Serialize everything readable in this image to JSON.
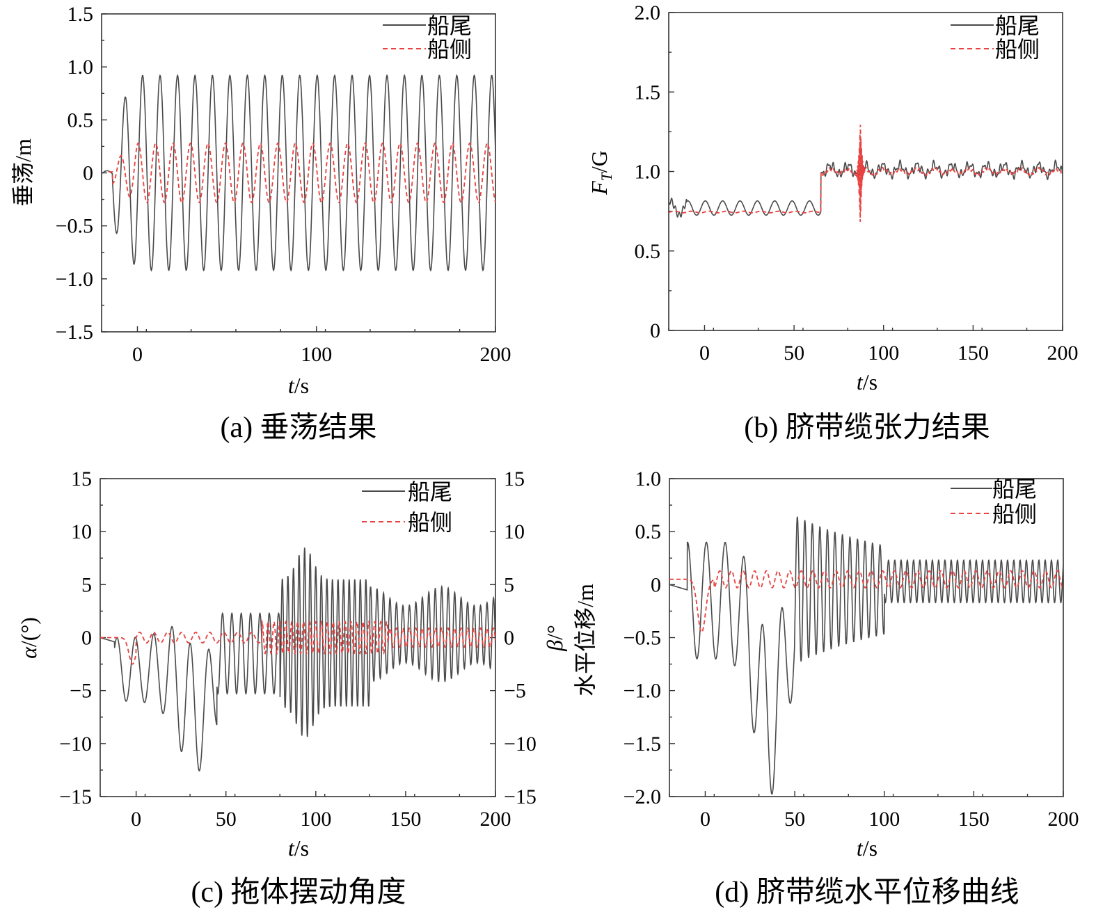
{
  "legend": {
    "stern": "船尾",
    "side": "船侧"
  },
  "colors": {
    "stern": "#4a4a4a",
    "side": "#e8413f"
  },
  "chart_data": [
    {
      "id": "a",
      "type": "line",
      "caption": "(a) 垂荡结果",
      "ylabel": "垂荡/m",
      "xlabel_italic": "t",
      "xlabel_rest": "/s",
      "xlim": [
        -20,
        200
      ],
      "ylim": [
        -1.5,
        1.5
      ],
      "xticks": [
        0,
        100,
        200
      ],
      "xtick_labels": [
        "0",
        "100",
        "200"
      ],
      "yticks": [
        -1.5,
        -1.0,
        -0.5,
        0,
        0.5,
        1.0,
        1.5
      ],
      "ytick_labels": [
        "−1.5",
        "−1.0",
        "−0.5",
        "0",
        "0.5",
        "1.0",
        "1.5"
      ],
      "grid": false,
      "legend_position": "top-right",
      "series": [
        {
          "name": "船尾",
          "style": "solid",
          "description": "sinusoid, amplitude ~0.92 m, period ~9.7 s, small transient start near t=-15"
        },
        {
          "name": "船侧",
          "style": "dashed",
          "description": "sinusoid, amplitude ~0.28 m, same period"
        }
      ]
    },
    {
      "id": "b",
      "type": "line",
      "caption": "(b) 脐带缆张力结果",
      "ylabel_italic_main": "F",
      "ylabel_italic_sub": "T",
      "ylabel_rest": "/G",
      "xlabel_italic": "t",
      "xlabel_rest": "/s",
      "xlim": [
        -20,
        200
      ],
      "ylim": [
        0,
        2.0
      ],
      "xticks": [
        0,
        50,
        100,
        150,
        200
      ],
      "xtick_labels": [
        "0",
        "50",
        "100",
        "150",
        "200"
      ],
      "yticks": [
        0,
        0.5,
        1.0,
        1.5,
        2.0
      ],
      "ytick_labels": [
        "0",
        "0.5",
        "1.0",
        "1.5",
        "2.0"
      ],
      "grid": false,
      "legend_position": "top-right",
      "series": [
        {
          "name": "船尾",
          "style": "solid",
          "description": "~0.76 with 0.05 oscillation until t=65, then ~1.0 with noisy oscillation"
        },
        {
          "name": "船侧",
          "style": "dashed",
          "description": "~0.74 until t=65, then ~1.0; spike to 1.44 / 0.45 near t=87"
        }
      ]
    },
    {
      "id": "c",
      "type": "line",
      "caption": "(c) 拖体摆动角度",
      "ylabel_italic": "α",
      "ylabel_rest": "/(°)",
      "y2label_italic": "β",
      "y2label_rest": "/°",
      "xlabel_italic": "t",
      "xlabel_rest": "/s",
      "xlim": [
        -20,
        200
      ],
      "ylim": [
        -15,
        15
      ],
      "xticks": [
        0,
        50,
        100,
        150,
        200
      ],
      "xtick_labels": [
        "0",
        "50",
        "100",
        "150",
        "200"
      ],
      "yticks": [
        -15,
        -10,
        -5,
        0,
        5,
        10,
        15
      ],
      "ytick_labels": [
        "−15",
        "−10",
        "−5",
        "0",
        "5",
        "10",
        "15"
      ],
      "grid": false,
      "legend_position": "top-right",
      "series": [
        {
          "name": "船尾",
          "style": "solid",
          "description": "oscillation, min ~-10.4 near t=30, max ~11.3 near t=94"
        },
        {
          "name": "船侧",
          "style": "dashed",
          "description": "small oscillation within about ±2"
        }
      ]
    },
    {
      "id": "d",
      "type": "line",
      "caption": "(d) 脐带缆水平位移曲线",
      "ylabel": "水平位移/m",
      "xlabel_italic": "t",
      "xlabel_rest": "/s",
      "xlim": [
        -20,
        200
      ],
      "ylim": [
        -2.0,
        1.0
      ],
      "xticks": [
        0,
        50,
        100,
        150,
        200
      ],
      "xtick_labels": [
        "0",
        "50",
        "100",
        "150",
        "200"
      ],
      "yticks": [
        -2.0,
        -1.5,
        -1.0,
        -0.5,
        0,
        0.5,
        1.0
      ],
      "ytick_labels": [
        "−2.0",
        "−1.5",
        "−1.0",
        "−0.5",
        "0",
        "0.5",
        "1.0"
      ],
      "grid": false,
      "legend_position": "top-right",
      "series": [
        {
          "name": "船尾",
          "style": "solid",
          "description": "large oscillation, minimum ~-1.68 near t=31 and t=42, decaying to about ±0.2 after t=100"
        },
        {
          "name": "船侧",
          "style": "dashed",
          "description": "small oscillation about ±0.1, dip to -0.45 near t=-2"
        }
      ]
    }
  ]
}
